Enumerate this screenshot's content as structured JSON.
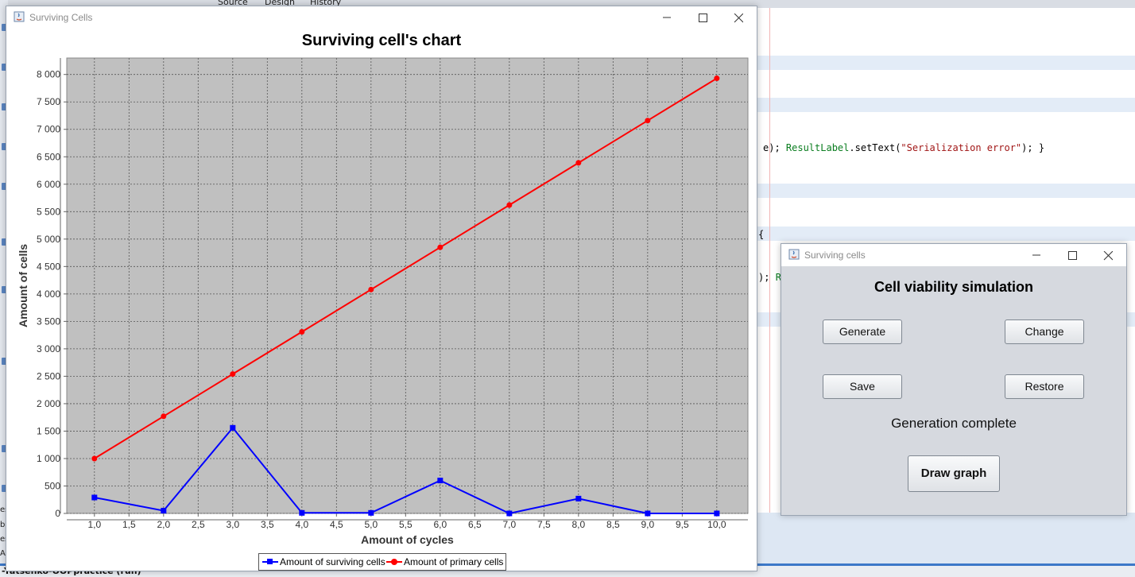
{
  "ide": {
    "toolbar_tabs": [
      "Source",
      "Design",
      "History"
    ],
    "code_line_1": {
      "pre": "e); ",
      "fn": "ResultLabel",
      "mid": ".setText(",
      "str": "\"Serialization error\"",
      "post": "); }"
    },
    "code_line_2": "{",
    "code_line_3": {
      "pre": "); ",
      "fn": "R"
    },
    "status_text": "-Yatsenko-OOPpractice (run)",
    "left_panel_fragments": [
      "es",
      "b",
      "es",
      "Ap"
    ]
  },
  "chart_window": {
    "title": "Surviving Cells",
    "controls": {
      "minimize": "minimize-icon",
      "maximize": "maximize-icon",
      "close": "close-icon"
    }
  },
  "chart_data": {
    "type": "line",
    "title": "Surviving cell's chart",
    "xlabel": "Amount of cycles",
    "ylabel": "Amount of cells",
    "x": [
      1,
      2,
      3,
      4,
      5,
      6,
      7,
      8,
      9,
      10
    ],
    "xlim": [
      0.6,
      10.45
    ],
    "ylim": [
      0,
      8300
    ],
    "x_ticks": [
      "1,0",
      "1,5",
      "2,0",
      "2,5",
      "3,0",
      "3,5",
      "4,0",
      "4,5",
      "5,0",
      "5,5",
      "6,0",
      "6,5",
      "7,0",
      "7,5",
      "8,0",
      "8,5",
      "9,0",
      "9,5",
      "10,0"
    ],
    "y_ticks": [
      "0",
      "500",
      "1 000",
      "1 500",
      "2 000",
      "2 500",
      "3 000",
      "3 500",
      "4 000",
      "4 500",
      "5 000",
      "5 500",
      "6 000",
      "6 500",
      "7 000",
      "7 500",
      "8 000"
    ],
    "grid": true,
    "background": "#c0c0c0",
    "legend_position": "bottom",
    "series": [
      {
        "name": "Amount of surviving cells",
        "color": "#0000ff",
        "marker": "square",
        "values": [
          290,
          50,
          1560,
          10,
          10,
          600,
          0,
          270,
          0,
          0
        ]
      },
      {
        "name": "Amount of primary cells",
        "color": "#ff0000",
        "marker": "circle",
        "values": [
          1000,
          1770,
          2540,
          3310,
          4080,
          4850,
          5620,
          6390,
          7160,
          7930
        ]
      }
    ]
  },
  "sim_window": {
    "title": "Surviving cells",
    "heading": "Cell viability simulation",
    "buttons": {
      "generate": "Generate",
      "change": "Change",
      "save": "Save",
      "restore": "Restore",
      "draw_graph": "Draw graph"
    },
    "status": "Generation complete"
  }
}
